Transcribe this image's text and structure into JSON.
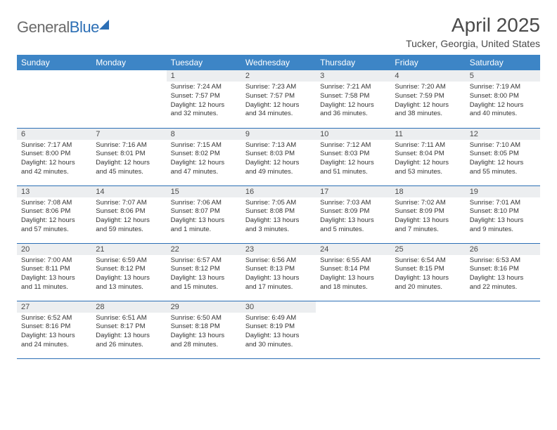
{
  "logo": {
    "word1": "General",
    "word2": "Blue"
  },
  "title": "April 2025",
  "location": "Tucker, Georgia, United States",
  "colors": {
    "header_bg": "#3d85c6",
    "header_text": "#ffffff",
    "row_border": "#2c6fb5",
    "daynum_bg": "#eceef0",
    "text": "#333333",
    "logo_gray": "#6b6b6b",
    "logo_blue": "#2c6fb5"
  },
  "weekdays": [
    "Sunday",
    "Monday",
    "Tuesday",
    "Wednesday",
    "Thursday",
    "Friday",
    "Saturday"
  ],
  "cells": [
    [
      null,
      null,
      {
        "n": "1",
        "sr": "7:24 AM",
        "ss": "7:57 PM",
        "dl": "12 hours and 32 minutes."
      },
      {
        "n": "2",
        "sr": "7:23 AM",
        "ss": "7:57 PM",
        "dl": "12 hours and 34 minutes."
      },
      {
        "n": "3",
        "sr": "7:21 AM",
        "ss": "7:58 PM",
        "dl": "12 hours and 36 minutes."
      },
      {
        "n": "4",
        "sr": "7:20 AM",
        "ss": "7:59 PM",
        "dl": "12 hours and 38 minutes."
      },
      {
        "n": "5",
        "sr": "7:19 AM",
        "ss": "8:00 PM",
        "dl": "12 hours and 40 minutes."
      }
    ],
    [
      {
        "n": "6",
        "sr": "7:17 AM",
        "ss": "8:00 PM",
        "dl": "12 hours and 42 minutes."
      },
      {
        "n": "7",
        "sr": "7:16 AM",
        "ss": "8:01 PM",
        "dl": "12 hours and 45 minutes."
      },
      {
        "n": "8",
        "sr": "7:15 AM",
        "ss": "8:02 PM",
        "dl": "12 hours and 47 minutes."
      },
      {
        "n": "9",
        "sr": "7:13 AM",
        "ss": "8:03 PM",
        "dl": "12 hours and 49 minutes."
      },
      {
        "n": "10",
        "sr": "7:12 AM",
        "ss": "8:03 PM",
        "dl": "12 hours and 51 minutes."
      },
      {
        "n": "11",
        "sr": "7:11 AM",
        "ss": "8:04 PM",
        "dl": "12 hours and 53 minutes."
      },
      {
        "n": "12",
        "sr": "7:10 AM",
        "ss": "8:05 PM",
        "dl": "12 hours and 55 minutes."
      }
    ],
    [
      {
        "n": "13",
        "sr": "7:08 AM",
        "ss": "8:06 PM",
        "dl": "12 hours and 57 minutes."
      },
      {
        "n": "14",
        "sr": "7:07 AM",
        "ss": "8:06 PM",
        "dl": "12 hours and 59 minutes."
      },
      {
        "n": "15",
        "sr": "7:06 AM",
        "ss": "8:07 PM",
        "dl": "13 hours and 1 minute."
      },
      {
        "n": "16",
        "sr": "7:05 AM",
        "ss": "8:08 PM",
        "dl": "13 hours and 3 minutes."
      },
      {
        "n": "17",
        "sr": "7:03 AM",
        "ss": "8:09 PM",
        "dl": "13 hours and 5 minutes."
      },
      {
        "n": "18",
        "sr": "7:02 AM",
        "ss": "8:09 PM",
        "dl": "13 hours and 7 minutes."
      },
      {
        "n": "19",
        "sr": "7:01 AM",
        "ss": "8:10 PM",
        "dl": "13 hours and 9 minutes."
      }
    ],
    [
      {
        "n": "20",
        "sr": "7:00 AM",
        "ss": "8:11 PM",
        "dl": "13 hours and 11 minutes."
      },
      {
        "n": "21",
        "sr": "6:59 AM",
        "ss": "8:12 PM",
        "dl": "13 hours and 13 minutes."
      },
      {
        "n": "22",
        "sr": "6:57 AM",
        "ss": "8:12 PM",
        "dl": "13 hours and 15 minutes."
      },
      {
        "n": "23",
        "sr": "6:56 AM",
        "ss": "8:13 PM",
        "dl": "13 hours and 17 minutes."
      },
      {
        "n": "24",
        "sr": "6:55 AM",
        "ss": "8:14 PM",
        "dl": "13 hours and 18 minutes."
      },
      {
        "n": "25",
        "sr": "6:54 AM",
        "ss": "8:15 PM",
        "dl": "13 hours and 20 minutes."
      },
      {
        "n": "26",
        "sr": "6:53 AM",
        "ss": "8:16 PM",
        "dl": "13 hours and 22 minutes."
      }
    ],
    [
      {
        "n": "27",
        "sr": "6:52 AM",
        "ss": "8:16 PM",
        "dl": "13 hours and 24 minutes."
      },
      {
        "n": "28",
        "sr": "6:51 AM",
        "ss": "8:17 PM",
        "dl": "13 hours and 26 minutes."
      },
      {
        "n": "29",
        "sr": "6:50 AM",
        "ss": "8:18 PM",
        "dl": "13 hours and 28 minutes."
      },
      {
        "n": "30",
        "sr": "6:49 AM",
        "ss": "8:19 PM",
        "dl": "13 hours and 30 minutes."
      },
      null,
      null,
      null
    ]
  ],
  "labels": {
    "sunrise": "Sunrise:",
    "sunset": "Sunset:",
    "daylight": "Daylight:"
  }
}
